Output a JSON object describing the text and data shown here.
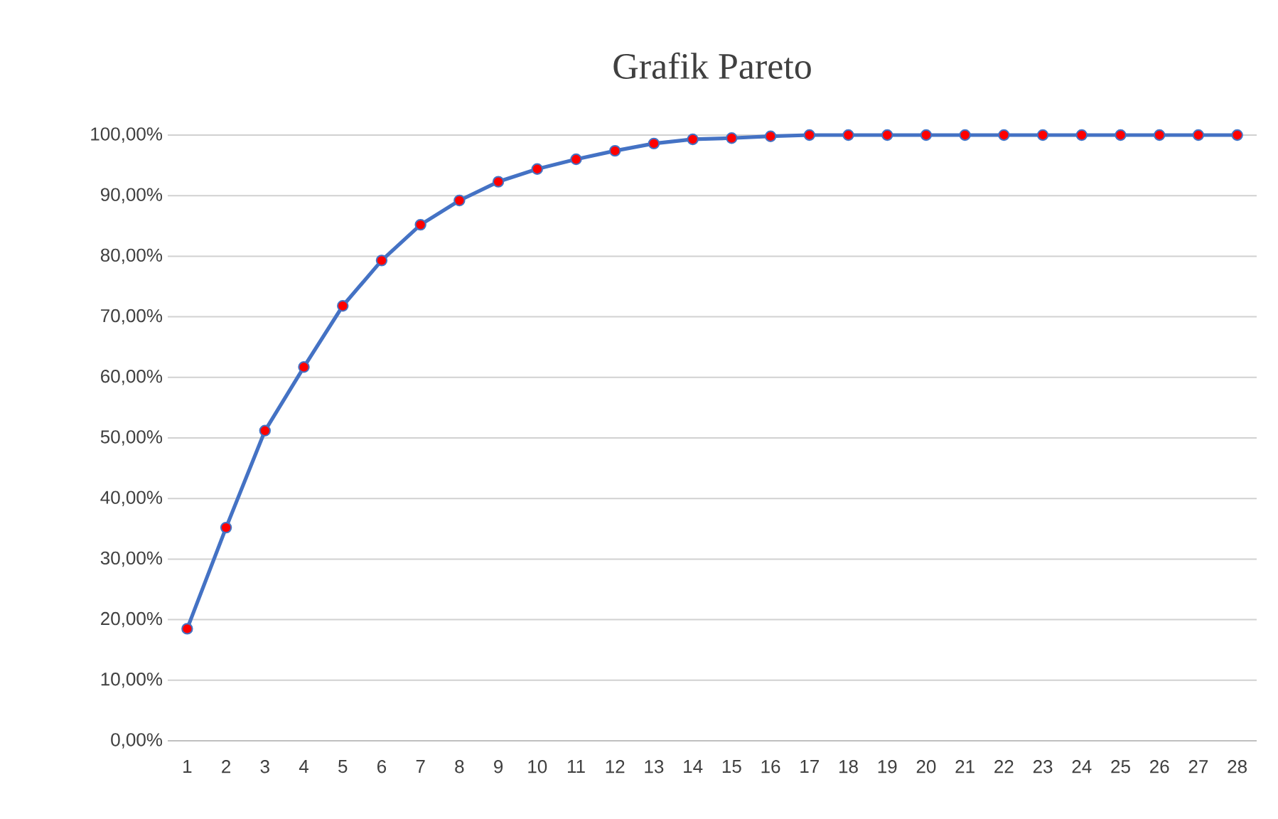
{
  "chart_data": {
    "type": "line",
    "title": "Grafik Pareto",
    "categories": [
      "1",
      "2",
      "3",
      "4",
      "5",
      "6",
      "7",
      "8",
      "9",
      "10",
      "11",
      "12",
      "13",
      "14",
      "15",
      "16",
      "17",
      "18",
      "19",
      "20",
      "21",
      "22",
      "23",
      "24",
      "25",
      "26",
      "27",
      "28"
    ],
    "series": [
      {
        "color": "#4472c4",
        "values": [
          18.5,
          35.2,
          51.2,
          61.7,
          71.8,
          79.3,
          85.2,
          89.2,
          92.3,
          94.4,
          96.0,
          97.4,
          98.6,
          99.3,
          99.5,
          99.8,
          100,
          100,
          100,
          100,
          100,
          100,
          100,
          100,
          100,
          100,
          100,
          100
        ]
      }
    ],
    "ylim": [
      0,
      100
    ],
    "yticks": [
      {
        "value": 0,
        "label": "0,00%"
      },
      {
        "value": 10,
        "label": "10,00%"
      },
      {
        "value": 20,
        "label": "20,00%"
      },
      {
        "value": 30,
        "label": "30,00%"
      },
      {
        "value": 40,
        "label": "40,00%"
      },
      {
        "value": 50,
        "label": "50,00%"
      },
      {
        "value": 60,
        "label": "60,00%"
      },
      {
        "value": 70,
        "label": "70,00%"
      },
      {
        "value": 80,
        "label": "80,00%"
      },
      {
        "value": 90,
        "label": "90,00%"
      },
      {
        "value": 100,
        "label": "100,00%"
      }
    ],
    "grid": "y",
    "marker": "circle",
    "line_style": "solid"
  }
}
